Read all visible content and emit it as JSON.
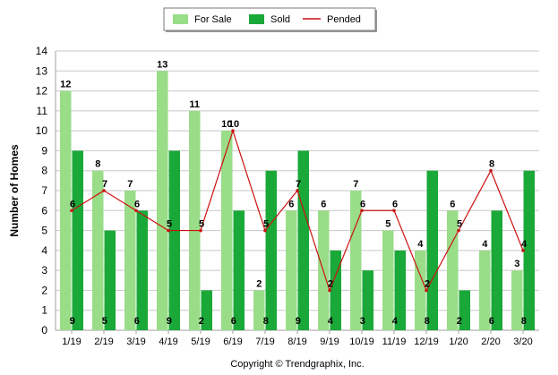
{
  "chart_data": {
    "type": "bar",
    "ylabel": "Number of Homes",
    "xlabel": "",
    "ylim": [
      0,
      14
    ],
    "y_ticks": [
      0,
      1,
      2,
      3,
      4,
      5,
      6,
      7,
      8,
      9,
      10,
      11,
      12,
      13,
      14
    ],
    "grid": true,
    "legend_position": "top-center",
    "categories": [
      "1/19",
      "2/19",
      "3/19",
      "4/19",
      "5/19",
      "6/19",
      "7/19",
      "8/19",
      "9/19",
      "10/19",
      "11/19",
      "12/19",
      "1/20",
      "2/20",
      "3/20"
    ],
    "series": [
      {
        "name": "For Sale",
        "kind": "bar",
        "color": "#99dd88",
        "values": [
          12,
          8,
          7,
          13,
          11,
          10,
          2,
          6,
          6,
          7,
          5,
          4,
          6,
          4,
          3
        ]
      },
      {
        "name": "Sold",
        "kind": "bar",
        "color": "#1aa838",
        "values": [
          9,
          5,
          6,
          9,
          2,
          6,
          8,
          9,
          4,
          3,
          4,
          8,
          2,
          6,
          8
        ]
      },
      {
        "name": "Pended",
        "kind": "line",
        "color": "#cc1111",
        "values": [
          6,
          7,
          6,
          5,
          5,
          10,
          5,
          7,
          2,
          6,
          6,
          2,
          5,
          8,
          4
        ]
      }
    ]
  },
  "footer": "Copyright © Trendgraphix, Inc."
}
